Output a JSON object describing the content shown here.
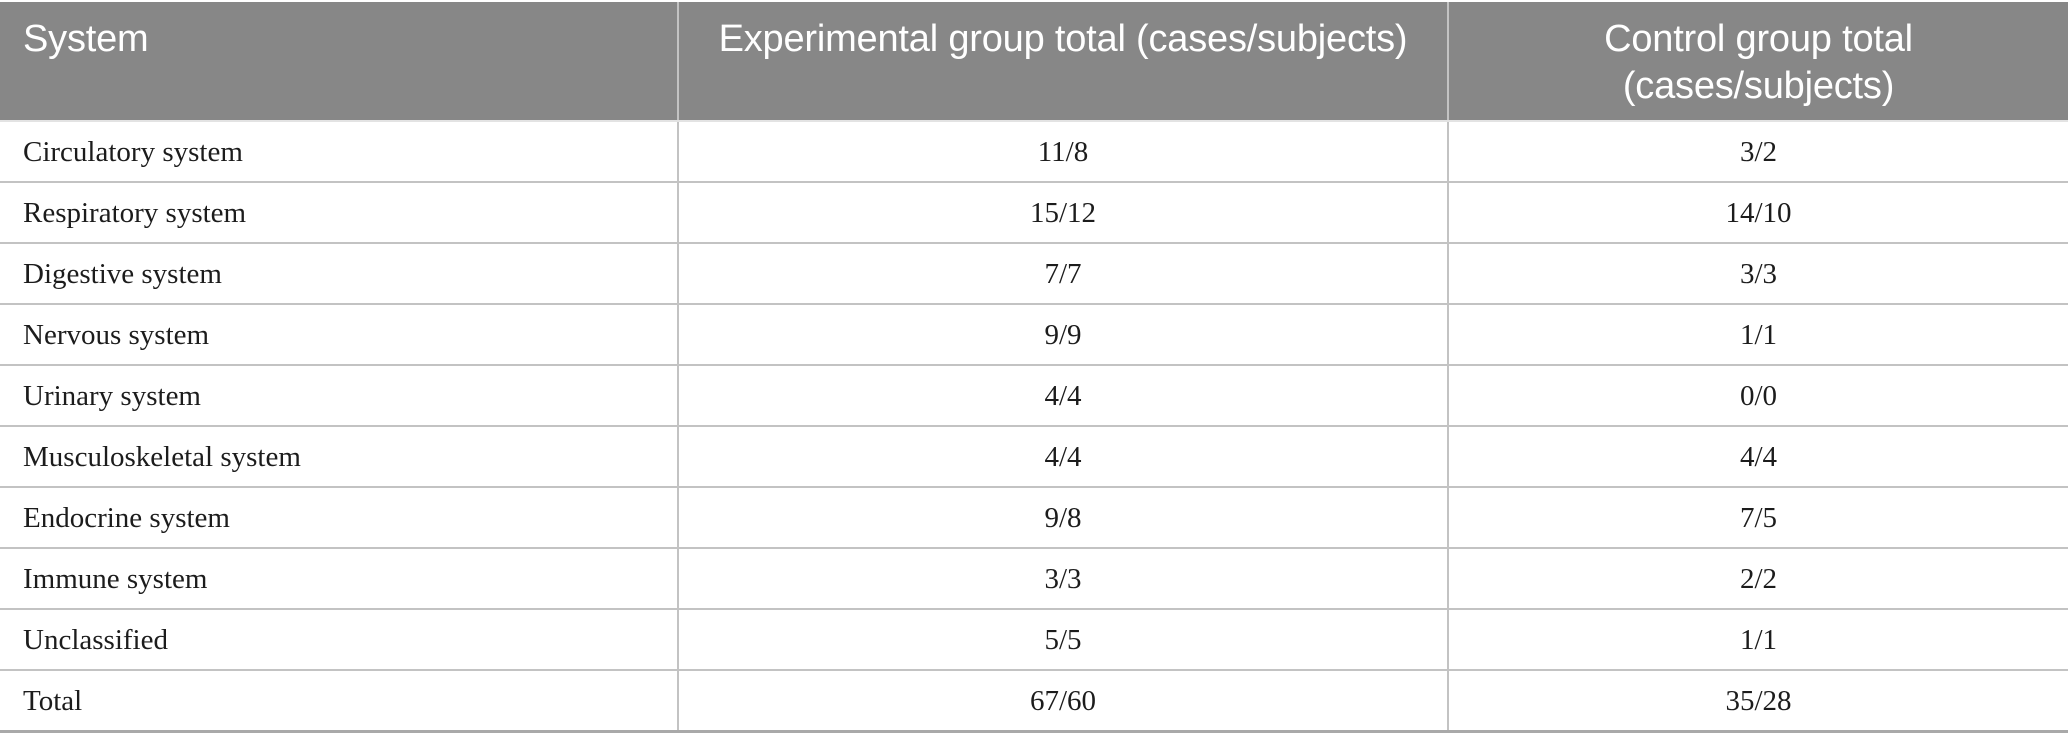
{
  "colors": {
    "header_background": "#878787",
    "header_text": "#ffffff",
    "body_text": "#1c1c1c",
    "grid_line": "#c3c3c3",
    "bottom_rule": "#a9a9a9"
  },
  "table": {
    "columns": [
      {
        "label": "System"
      },
      {
        "label": "Experimental group total (cases/subjects)"
      },
      {
        "label": "Control group total (cases/subjects)"
      }
    ],
    "rows": [
      {
        "system": "Circulatory system",
        "experimental": "11/8",
        "control": "3/2"
      },
      {
        "system": "Respiratory system",
        "experimental": "15/12",
        "control": "14/10"
      },
      {
        "system": "Digestive system",
        "experimental": "7/7",
        "control": "3/3"
      },
      {
        "system": "Nervous system",
        "experimental": "9/9",
        "control": "1/1"
      },
      {
        "system": "Urinary system",
        "experimental": "4/4",
        "control": "0/0"
      },
      {
        "system": "Musculoskeletal system",
        "experimental": "4/4",
        "control": "4/4"
      },
      {
        "system": "Endocrine system",
        "experimental": "9/8",
        "control": "7/5"
      },
      {
        "system": "Immune system",
        "experimental": "3/3",
        "control": "2/2"
      },
      {
        "system": "Unclassified",
        "experimental": "5/5",
        "control": "1/1"
      },
      {
        "system": "Total",
        "experimental": "67/60",
        "control": "35/28"
      }
    ]
  },
  "chart_data": {
    "type": "table",
    "columns": [
      "System",
      "Experimental group total (cases/subjects)",
      "Control group total (cases/subjects)"
    ],
    "rows": [
      [
        "Circulatory system",
        "11/8",
        "3/2"
      ],
      [
        "Respiratory system",
        "15/12",
        "14/10"
      ],
      [
        "Digestive system",
        "7/7",
        "3/3"
      ],
      [
        "Nervous system",
        "9/9",
        "1/1"
      ],
      [
        "Urinary system",
        "4/4",
        "0/0"
      ],
      [
        "Musculoskeletal system",
        "4/4",
        "4/4"
      ],
      [
        "Endocrine system",
        "9/8",
        "7/5"
      ],
      [
        "Immune system",
        "3/3",
        "2/2"
      ],
      [
        "Unclassified",
        "5/5",
        "1/1"
      ],
      [
        "Total",
        "67/60",
        "35/28"
      ]
    ]
  }
}
